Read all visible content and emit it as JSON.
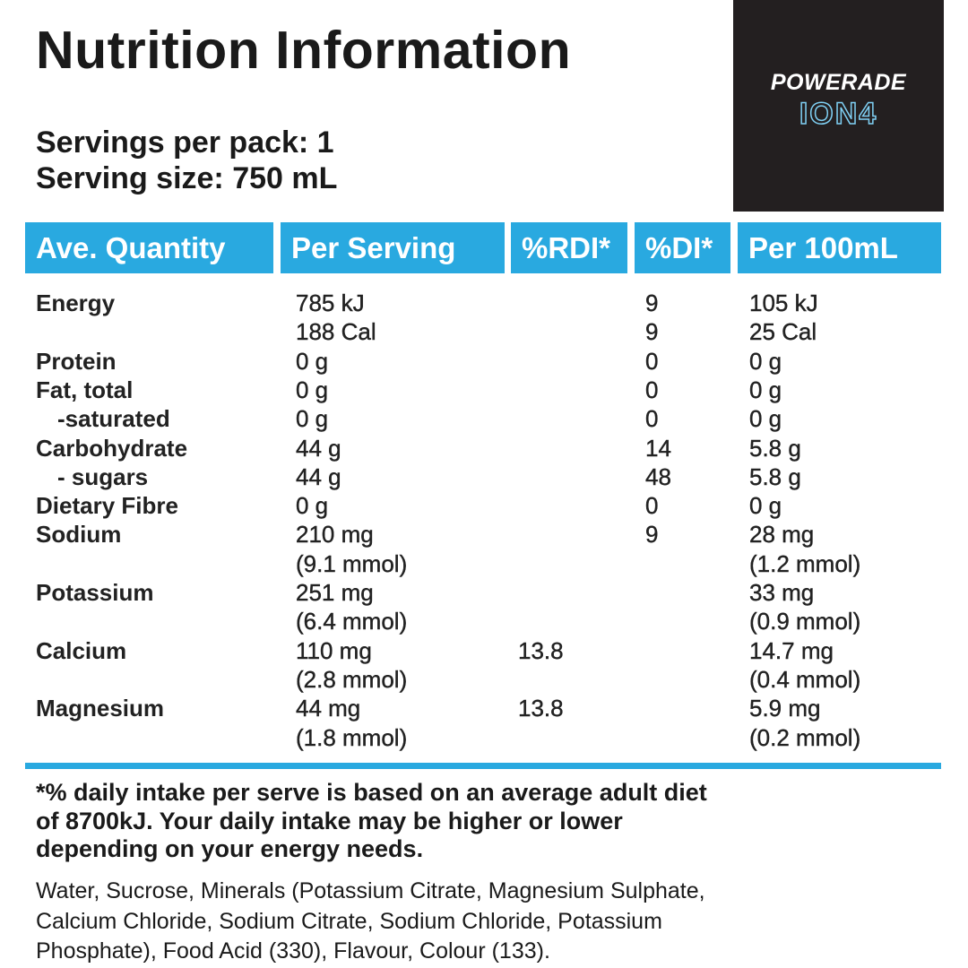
{
  "header": {
    "title": "Nutrition Information",
    "servings_per_pack": "Servings per pack: 1",
    "serving_size": "Serving size: 750 mL"
  },
  "logo": {
    "brand": "POWERADE",
    "product": "ION4"
  },
  "table": {
    "columns": [
      "Ave. Quantity",
      "Per Serving",
      "%RDI*",
      "%DI*",
      "Per 100mL"
    ],
    "rows": [
      {
        "nutrient": "Energy",
        "per_serving": [
          "785 kJ",
          "188 Cal"
        ],
        "di": [
          "9",
          "9"
        ],
        "per_100ml": [
          "105 kJ",
          "25 Cal"
        ]
      },
      {
        "nutrient": "Protein",
        "per_serving": [
          "0 g"
        ],
        "di": [
          "0"
        ],
        "per_100ml": [
          "0 g"
        ]
      },
      {
        "nutrient": "Fat, total",
        "per_serving": [
          "0 g"
        ],
        "di": [
          "0"
        ],
        "per_100ml": [
          "0 g"
        ]
      },
      {
        "nutrient": "-saturated",
        "indent": true,
        "per_serving": [
          "0 g"
        ],
        "di": [
          "0"
        ],
        "per_100ml": [
          "0 g"
        ]
      },
      {
        "nutrient": "Carbohydrate",
        "per_serving": [
          "44 g"
        ],
        "di": [
          "14"
        ],
        "per_100ml": [
          "5.8 g"
        ]
      },
      {
        "nutrient": "- sugars",
        "indent": true,
        "per_serving": [
          "44 g"
        ],
        "di": [
          "48"
        ],
        "per_100ml": [
          "5.8 g"
        ]
      },
      {
        "nutrient": "Dietary Fibre",
        "per_serving": [
          "0 g"
        ],
        "di": [
          "0"
        ],
        "per_100ml": [
          "0 g"
        ]
      },
      {
        "nutrient": "Sodium",
        "per_serving": [
          "210 mg",
          "(9.1 mmol)"
        ],
        "di": [
          "9"
        ],
        "per_100ml": [
          "28 mg",
          "(1.2 mmol)"
        ]
      },
      {
        "nutrient": "Potassium",
        "per_serving": [
          "251 mg",
          "(6.4 mmol)"
        ],
        "per_100ml": [
          "33 mg",
          "(0.9 mmol)"
        ]
      },
      {
        "nutrient": "Calcium",
        "per_serving": [
          "110 mg",
          "(2.8 mmol)"
        ],
        "rdi": [
          "13.8"
        ],
        "per_100ml": [
          "14.7 mg",
          "(0.4 mmol)"
        ]
      },
      {
        "nutrient": "Magnesium",
        "per_serving": [
          "44 mg",
          "(1.8 mmol)"
        ],
        "rdi": [
          "13.8"
        ],
        "per_100ml": [
          "5.9 mg",
          "(0.2 mmol)"
        ]
      }
    ]
  },
  "footnote": [
    "*% daily intake per serve is based on an average adult diet",
    "of 8700kJ. Your daily intake may be higher or lower",
    "depending on your energy needs."
  ],
  "ingredients": [
    "Water, Sucrose, Minerals (Potassium Citrate, Magnesium Sulphate,",
    "Calcium Chloride, Sodium Citrate, Sodium Chloride, Potassium",
    "Phosphate), Food Acid (330), Flavour, Colour (133)."
  ]
}
